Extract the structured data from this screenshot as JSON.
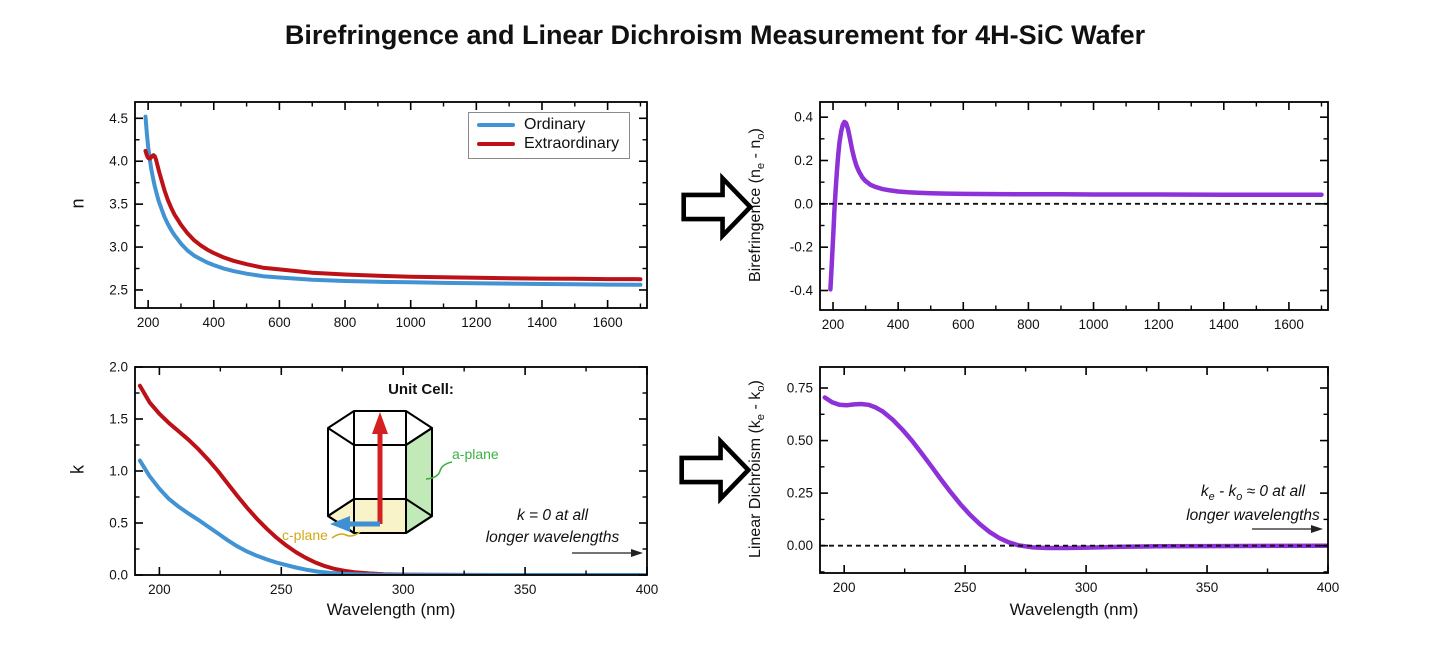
{
  "title": "Birefringence and Linear Dichroism Measurement for 4H-SiC Wafer",
  "colors": {
    "ordinary": "#4293d3",
    "extraordinary": "#bd1118",
    "difference": "#8e31d8",
    "axis": "#000000",
    "zero_line": "#111111"
  },
  "unit_cell": {
    "title": "Unit Cell:",
    "c_plane_label": "c-plane",
    "a_plane_label": "a-plane",
    "c_plane_text_color": "#d2a816",
    "a_plane_text_color": "#3bb143",
    "c_plane_fill": "#f8f3c8",
    "a_plane_fill": "#c2eab8",
    "c_axis_arrow_color": "#d42020",
    "a_axis_arrow_color": "#3f8fd2"
  },
  "chart_data": [
    {
      "id": "refractive-index",
      "type": "line",
      "ylabel_parts": [
        {
          "t": "n"
        }
      ],
      "xlabel": "",
      "xlim": [
        160,
        1720
      ],
      "ylim": [
        2.29,
        4.69
      ],
      "xticks": [
        200,
        400,
        600,
        800,
        1000,
        1200,
        1400,
        1600
      ],
      "xtick_labels": [
        "200",
        "400",
        "600",
        "800",
        "1000",
        "1200",
        "1400",
        "1600"
      ],
      "xminor": [
        300,
        500,
        700,
        900,
        1100,
        1300,
        1500,
        1700
      ],
      "yticks": [
        2.5,
        3.0,
        3.5,
        4.0,
        4.5
      ],
      "ytick_labels": [
        "2.5",
        "3.0",
        "3.5",
        "4.0",
        "4.5"
      ],
      "yminor": [
        2.75,
        3.25,
        3.75,
        4.25
      ],
      "zero_dash": false,
      "legend": {
        "position": "top-right",
        "entries": [
          "Ordinary",
          "Extraordinary"
        ]
      },
      "series": [
        {
          "name": "Ordinary",
          "color_key": "ordinary",
          "width": 4,
          "x": [
            192,
            196,
            200,
            205,
            210,
            215,
            220,
            226,
            232,
            240,
            250,
            260,
            270,
            280,
            290,
            300,
            320,
            340,
            360,
            380,
            400,
            430,
            460,
            500,
            550,
            600,
            700,
            800,
            900,
            1000,
            1100,
            1200,
            1300,
            1400,
            1500,
            1600,
            1700
          ],
          "y": [
            4.52,
            4.33,
            4.17,
            4.02,
            3.9,
            3.8,
            3.71,
            3.62,
            3.54,
            3.45,
            3.35,
            3.27,
            3.2,
            3.14,
            3.09,
            3.04,
            2.96,
            2.9,
            2.86,
            2.82,
            2.79,
            2.75,
            2.72,
            2.69,
            2.66,
            2.645,
            2.62,
            2.605,
            2.595,
            2.59,
            2.583,
            2.578,
            2.574,
            2.57,
            2.567,
            2.563,
            2.56
          ]
        },
        {
          "name": "Extraordinary",
          "color_key": "extraordinary",
          "width": 4,
          "x": [
            192,
            196,
            200,
            204,
            208,
            212,
            216,
            220,
            224,
            228,
            234,
            240,
            250,
            260,
            270,
            280,
            290,
            300,
            320,
            340,
            360,
            380,
            400,
            430,
            460,
            500,
            550,
            600,
            700,
            800,
            900,
            1000,
            1100,
            1200,
            1300,
            1400,
            1500,
            1600,
            1700
          ],
          "y": [
            4.12,
            4.07,
            4.04,
            4.03,
            4.04,
            4.06,
            4.07,
            4.06,
            4.02,
            3.96,
            3.87,
            3.79,
            3.66,
            3.55,
            3.46,
            3.38,
            3.32,
            3.26,
            3.16,
            3.08,
            3.02,
            2.97,
            2.93,
            2.88,
            2.84,
            2.8,
            2.76,
            2.74,
            2.7,
            2.68,
            2.665,
            2.655,
            2.648,
            2.642,
            2.637,
            2.633,
            2.63,
            2.627,
            2.625
          ]
        }
      ]
    },
    {
      "id": "birefringence",
      "type": "line",
      "ylabel_parts": [
        {
          "t": "Birefringence (n"
        },
        {
          "t": "e",
          "sub": true
        },
        {
          "t": " - n"
        },
        {
          "t": "o",
          "sub": true
        },
        {
          "t": ")"
        }
      ],
      "xlabel": "",
      "xlim": [
        160,
        1720
      ],
      "ylim": [
        -0.49,
        0.47
      ],
      "xticks": [
        200,
        400,
        600,
        800,
        1000,
        1200,
        1400,
        1600
      ],
      "xtick_labels": [
        "200",
        "400",
        "600",
        "800",
        "1000",
        "1200",
        "1400",
        "1600"
      ],
      "xminor": [
        300,
        500,
        700,
        900,
        1100,
        1300,
        1500,
        1700
      ],
      "yticks": [
        -0.4,
        -0.2,
        0.0,
        0.2,
        0.4
      ],
      "ytick_labels": [
        "-0.4",
        "-0.2",
        "0.0",
        "0.2",
        "0.4"
      ],
      "yminor": [
        -0.3,
        -0.1,
        0.1,
        0.3
      ],
      "zero_dash": true,
      "series": [
        {
          "name": "Birefringence",
          "color_key": "difference",
          "width": 4.5,
          "x": [
            192,
            195,
            198,
            201,
            204,
            208,
            212,
            216,
            220,
            225,
            230,
            235,
            240,
            246,
            252,
            258,
            265,
            272,
            280,
            290,
            300,
            315,
            330,
            350,
            375,
            400,
            430,
            460,
            500,
            550,
            600,
            700,
            800,
            900,
            1000,
            1200,
            1400,
            1600,
            1700
          ],
          "y": [
            -0.395,
            -0.31,
            -0.22,
            -0.13,
            -0.04,
            0.06,
            0.15,
            0.225,
            0.285,
            0.335,
            0.365,
            0.378,
            0.372,
            0.345,
            0.3,
            0.255,
            0.21,
            0.175,
            0.148,
            0.122,
            0.105,
            0.088,
            0.078,
            0.069,
            0.062,
            0.057,
            0.053,
            0.051,
            0.049,
            0.047,
            0.046,
            0.045,
            0.044,
            0.044,
            0.043,
            0.043,
            0.042,
            0.042,
            0.042
          ]
        }
      ]
    },
    {
      "id": "extinction-coefficient",
      "type": "line",
      "ylabel_parts": [
        {
          "t": "k"
        }
      ],
      "xlabel": "Wavelength (nm)",
      "xlim": [
        190,
        400
      ],
      "ylim": [
        0,
        2.0
      ],
      "xticks": [
        200,
        250,
        300,
        350,
        400
      ],
      "xtick_labels": [
        "200",
        "250",
        "300",
        "350",
        "400"
      ],
      "xminor": [
        225,
        275,
        325,
        375
      ],
      "yticks": [
        0.0,
        0.5,
        1.0,
        1.5,
        2.0
      ],
      "ytick_labels": [
        "0.0",
        "0.5",
        "1.0",
        "1.5",
        "2.0"
      ],
      "yminor": [
        0.25,
        0.75,
        1.25,
        1.75
      ],
      "zero_dash": false,
      "annotation": {
        "text": "k = 0 at all longer wavelengths",
        "line1_parts": [
          {
            "t": "k = 0 at all"
          }
        ],
        "line2_parts": [
          {
            "t": "longer wavelengths"
          }
        ]
      },
      "series": [
        {
          "name": "k extraordinary",
          "color_key": "extraordinary",
          "width": 4,
          "x": [
            192,
            196,
            200,
            204,
            208,
            212,
            216,
            220,
            224,
            228,
            232,
            236,
            240,
            244,
            248,
            252,
            256,
            260,
            264,
            268,
            272,
            276,
            280,
            286,
            292,
            300,
            310,
            325,
            350,
            400
          ],
          "y": [
            1.82,
            1.66,
            1.55,
            1.46,
            1.38,
            1.3,
            1.21,
            1.11,
            1.0,
            0.88,
            0.76,
            0.645,
            0.54,
            0.445,
            0.36,
            0.285,
            0.22,
            0.165,
            0.12,
            0.085,
            0.058,
            0.04,
            0.027,
            0.015,
            0.008,
            0.004,
            0.002,
            0.001,
            0.0,
            0.0
          ]
        },
        {
          "name": "k ordinary",
          "color_key": "ordinary",
          "width": 4,
          "x": [
            192,
            196,
            200,
            204,
            208,
            212,
            216,
            220,
            224,
            228,
            232,
            236,
            240,
            244,
            248,
            252,
            256,
            260,
            265,
            270,
            276,
            284,
            292,
            300,
            320,
            350,
            400
          ],
          "y": [
            1.1,
            0.95,
            0.83,
            0.73,
            0.655,
            0.59,
            0.53,
            0.465,
            0.4,
            0.335,
            0.275,
            0.225,
            0.185,
            0.15,
            0.12,
            0.095,
            0.072,
            0.052,
            0.033,
            0.02,
            0.011,
            0.005,
            0.002,
            0.001,
            0.0,
            0.0,
            0.0
          ]
        }
      ]
    },
    {
      "id": "linear-dichroism",
      "type": "line",
      "ylabel_parts": [
        {
          "t": "Linear Dichroism (k"
        },
        {
          "t": "e",
          "sub": true
        },
        {
          "t": " - k"
        },
        {
          "t": "o",
          "sub": true
        },
        {
          "t": ")"
        }
      ],
      "xlabel": "Wavelength (nm)",
      "xlim": [
        190,
        400
      ],
      "ylim": [
        -0.13,
        0.85
      ],
      "xticks": [
        200,
        250,
        300,
        350,
        400
      ],
      "xtick_labels": [
        "200",
        "250",
        "300",
        "350",
        "400"
      ],
      "xminor": [
        225,
        275,
        325,
        375
      ],
      "yticks": [
        0.0,
        0.25,
        0.5,
        0.75
      ],
      "ytick_labels": [
        "0.00",
        "0.25",
        "0.50",
        "0.75"
      ],
      "yminor": [
        -0.125,
        0.125,
        0.375,
        0.625
      ],
      "zero_dash": true,
      "annotation": {
        "text": "ke - ko ≈ 0 at all longer wavelengths",
        "line1_parts": [
          {
            "t": "k"
          },
          {
            "t": "e",
            "sub": true
          },
          {
            "t": " - k"
          },
          {
            "t": "o",
            "sub": true
          },
          {
            "t": " ≈ 0 at all"
          }
        ],
        "line2_parts": [
          {
            "t": "longer wavelengths"
          }
        ]
      },
      "series": [
        {
          "name": "Linear dichroism",
          "color_key": "difference",
          "width": 4.5,
          "x": [
            192,
            195,
            198,
            201,
            204,
            207,
            210,
            213,
            216,
            220,
            224,
            228,
            232,
            236,
            240,
            244,
            248,
            252,
            256,
            260,
            264,
            268,
            272,
            278,
            284,
            292,
            300,
            315,
            330,
            350,
            375,
            400
          ],
          "y": [
            0.705,
            0.682,
            0.67,
            0.668,
            0.672,
            0.674,
            0.67,
            0.658,
            0.638,
            0.6,
            0.553,
            0.5,
            0.44,
            0.378,
            0.315,
            0.255,
            0.198,
            0.147,
            0.103,
            0.066,
            0.037,
            0.016,
            0.002,
            -0.008,
            -0.011,
            -0.011,
            -0.009,
            -0.005,
            -0.003,
            -0.002,
            -0.001,
            0.0
          ]
        }
      ]
    }
  ]
}
